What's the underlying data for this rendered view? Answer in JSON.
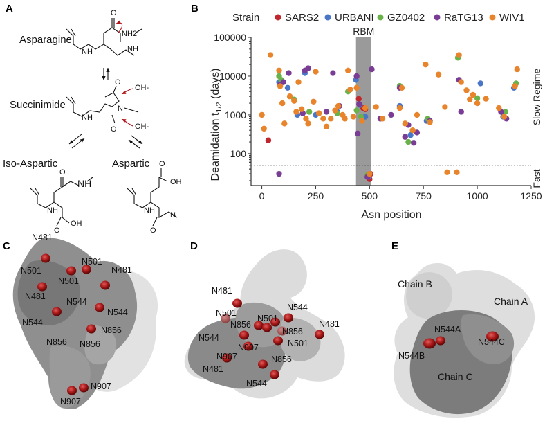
{
  "panels": {
    "a": "A",
    "b": "B",
    "c": "C",
    "d": "D",
    "e": "E"
  },
  "panel_a": {
    "labels": {
      "asparagine": "Asparagine",
      "succinimide": "Succinimide",
      "iso_aspartic": "Iso-Aspartic",
      "aspartic": "Aspartic"
    },
    "atoms": {
      "O": "O",
      "NH2": "NH2",
      "NH": "NH",
      "N": "N",
      "OH_minus": "OH-",
      "OH": "OH"
    }
  },
  "panel_c": {
    "labels": [
      "N481",
      "N501",
      "N501",
      "N501",
      "N481",
      "N481",
      "N544",
      "N544",
      "N544",
      "N856",
      "N856",
      "N856",
      "N907",
      "N907"
    ]
  },
  "panel_d": {
    "labels": [
      "N481",
      "N544",
      "N501",
      "N856",
      "N501",
      "N481",
      "N544",
      "N856",
      "N907",
      "N501",
      "N907",
      "N481",
      "N856",
      "N544"
    ]
  },
  "panel_e": {
    "chains": [
      "Chain B",
      "Chain A",
      "Chain C"
    ],
    "sites": [
      "N544A",
      "N544C",
      "N544B"
    ]
  },
  "chart_data": {
    "type": "scatter",
    "title": "",
    "xlabel": "Asn position",
    "ylabel": "Deamidation t1/2 (days)",
    "ylabel_main": "Deamidation t",
    "ylabel_sub": "1/2",
    "ylabel_tail": " (days)",
    "xlim": [
      -50,
      1250
    ],
    "ylim": [
      15,
      100000
    ],
    "y_scale": "log",
    "x_ticks": [
      0,
      250,
      500,
      750,
      1000,
      1250
    ],
    "x_tick_labels": [
      "0",
      "250",
      "500",
      "750",
      "1000",
      "1250"
    ],
    "y_ticks": [
      100,
      1000,
      10000,
      100000
    ],
    "y_tick_labels": [
      "100",
      "1000",
      "10000",
      "100000"
    ],
    "threshold": 50,
    "rbm_band": [
      437,
      508
    ],
    "annotations": {
      "rbm": "RBM",
      "slow": "Slow Regime",
      "fast": "Fast"
    },
    "legend_title": "Strain",
    "legend_position": "top",
    "series": [
      {
        "name": "SARS2",
        "color": "#c0272d",
        "points": [
          [
            30,
            220
          ],
          [
            450,
            2600
          ],
          [
            470,
            1500
          ],
          [
            480,
            1400
          ],
          [
            495,
            25
          ],
          [
            500,
            22
          ],
          [
            505,
            30
          ]
        ]
      },
      {
        "name": "URBANI",
        "color": "#4a76c8",
        "points": [
          [
            80,
            7000
          ],
          [
            120,
            5000
          ],
          [
            165,
            1000
          ],
          [
            200,
            12000
          ],
          [
            250,
            1000
          ],
          [
            350,
            1200
          ],
          [
            437,
            8000
          ],
          [
            455,
            1800
          ],
          [
            480,
            900
          ],
          [
            495,
            25
          ],
          [
            640,
            1700
          ],
          [
            690,
            300
          ],
          [
            765,
            700
          ],
          [
            1015,
            6500
          ],
          [
            1120,
            900
          ],
          [
            1170,
            5000
          ]
        ]
      },
      {
        "name": "GZ0402",
        "color": "#69b24a",
        "points": [
          [
            80,
            10000
          ],
          [
            90,
            8000
          ],
          [
            150,
            2500
          ],
          [
            220,
            1200
          ],
          [
            350,
            1100
          ],
          [
            400,
            4000
          ],
          [
            440,
            1300
          ],
          [
            460,
            900
          ],
          [
            490,
            28
          ],
          [
            640,
            5600
          ],
          [
            680,
            200
          ],
          [
            770,
            800
          ],
          [
            910,
            30000
          ],
          [
            1000,
            2700
          ],
          [
            1130,
            1200
          ],
          [
            1180,
            6500
          ]
        ]
      },
      {
        "name": "RaTG13",
        "color": "#7a3d96",
        "points": [
          [
            80,
            30
          ],
          [
            85,
            6000
          ],
          [
            100,
            7000
          ],
          [
            125,
            12000
          ],
          [
            190,
            1100
          ],
          [
            200,
            14000
          ],
          [
            215,
            16000
          ],
          [
            300,
            1200
          ],
          [
            330,
            12000
          ],
          [
            360,
            1700
          ],
          [
            440,
            10000
          ],
          [
            445,
            330
          ],
          [
            452,
            1900
          ],
          [
            490,
            25
          ],
          [
            510,
            15000
          ],
          [
            550,
            800
          ],
          [
            600,
            1000
          ],
          [
            640,
            5000
          ],
          [
            665,
            270
          ],
          [
            680,
            550
          ],
          [
            705,
            190
          ],
          [
            720,
            350
          ],
          [
            780,
            700
          ],
          [
            915,
            8000
          ],
          [
            925,
            1200
          ],
          [
            1110,
            1200
          ],
          [
            1135,
            800
          ]
        ]
      },
      {
        "name": "WIV1",
        "color": "#e8842b",
        "points": [
          [
            0,
            1000
          ],
          [
            10,
            440
          ],
          [
            40,
            35000
          ],
          [
            80,
            14000
          ],
          [
            85,
            5500
          ],
          [
            95,
            2000
          ],
          [
            105,
            600
          ],
          [
            130,
            3000
          ],
          [
            150,
            2300
          ],
          [
            160,
            1200
          ],
          [
            170,
            7000
          ],
          [
            185,
            1400
          ],
          [
            205,
            800
          ],
          [
            215,
            600
          ],
          [
            240,
            2200
          ],
          [
            250,
            13000
          ],
          [
            265,
            1100
          ],
          [
            285,
            800
          ],
          [
            300,
            500
          ],
          [
            320,
            800
          ],
          [
            340,
            1300
          ],
          [
            355,
            1700
          ],
          [
            375,
            1000
          ],
          [
            385,
            800
          ],
          [
            400,
            14000
          ],
          [
            410,
            4500
          ],
          [
            425,
            900
          ],
          [
            440,
            5000
          ],
          [
            465,
            700
          ],
          [
            480,
            1500
          ],
          [
            500,
            30
          ],
          [
            530,
            1600
          ],
          [
            560,
            800
          ],
          [
            640,
            1500
          ],
          [
            650,
            5000
          ],
          [
            665,
            600
          ],
          [
            700,
            400
          ],
          [
            720,
            1000
          ],
          [
            760,
            20000
          ],
          [
            780,
            650
          ],
          [
            820,
            11000
          ],
          [
            850,
            1600
          ],
          [
            860,
            33
          ],
          [
            905,
            33
          ],
          [
            915,
            35000
          ],
          [
            925,
            7000
          ],
          [
            950,
            4300
          ],
          [
            965,
            2500
          ],
          [
            980,
            3300
          ],
          [
            1000,
            2000
          ],
          [
            1040,
            2600
          ],
          [
            1100,
            1500
          ],
          [
            1125,
            900
          ],
          [
            1175,
            5500
          ],
          [
            1185,
            15000
          ]
        ]
      }
    ]
  }
}
